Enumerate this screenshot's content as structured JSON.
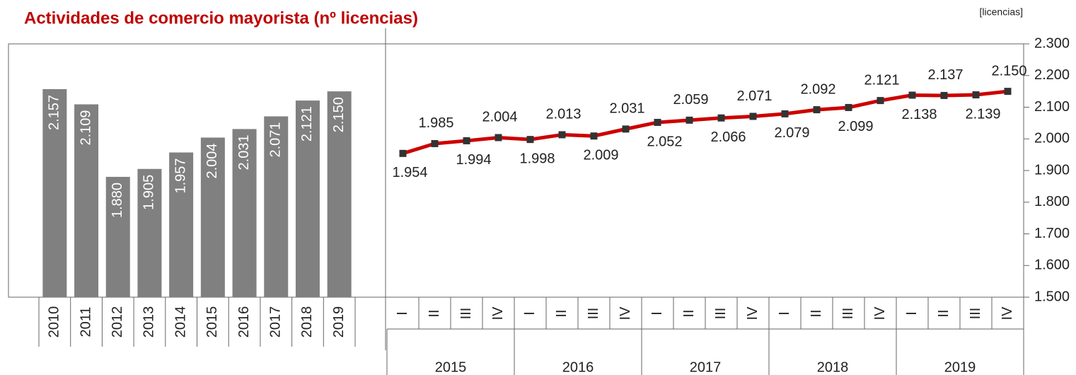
{
  "chart_data": [
    {
      "type": "bar",
      "title": "Actividades de comercio mayorista (nº licencias)",
      "categories": [
        "2010",
        "2011",
        "2012",
        "2013",
        "2014",
        "2015",
        "2016",
        "2017",
        "2018",
        "2019"
      ],
      "values": [
        2157,
        2109,
        1880,
        1905,
        1957,
        2004,
        2031,
        2071,
        2121,
        2150
      ],
      "value_labels": [
        "2.157",
        "2.109",
        "1.880",
        "1.905",
        "1.957",
        "2.004",
        "2.031",
        "2.071",
        "2.121",
        "2.150"
      ],
      "color": "#808080",
      "ylim": [
        1500,
        2300
      ]
    },
    {
      "type": "line",
      "unit": "[licencias]",
      "categories": [
        "I",
        "II",
        "III",
        "IV",
        "I",
        "II",
        "III",
        "IV",
        "I",
        "II",
        "III",
        "IV",
        "I",
        "II",
        "III",
        "IV",
        "I",
        "II",
        "III",
        "IV"
      ],
      "groups": [
        "2015",
        "2016",
        "2017",
        "2018",
        "2019"
      ],
      "values": [
        1954,
        1985,
        1994,
        2004,
        1998,
        2013,
        2009,
        2031,
        2052,
        2059,
        2066,
        2071,
        2079,
        2092,
        2099,
        2121,
        2138,
        2137,
        2139,
        2150
      ],
      "value_labels": [
        "1.954",
        "1.985",
        "1.994",
        "2.004",
        "1.998",
        "2.013",
        "2.009",
        "2.031",
        "2.052",
        "2.059",
        "2.066",
        "2.071",
        "2.079",
        "2.092",
        "2.099",
        "2.121",
        "2.138",
        "2.137",
        "2.139",
        "2.150"
      ],
      "color": "#cc0000",
      "marker_color": "#333333",
      "ylim": [
        1500,
        2300
      ],
      "yticks": [
        {
          "value": 1500,
          "label": "1.500"
        },
        {
          "value": 1600,
          "label": "1.600"
        },
        {
          "value": 1700,
          "label": "1.700"
        },
        {
          "value": 1800,
          "label": "1.800"
        },
        {
          "value": 1900,
          "label": "1.900"
        },
        {
          "value": 2000,
          "label": "2.000"
        },
        {
          "value": 2100,
          "label": "2.100"
        },
        {
          "value": 2200,
          "label": "2.200"
        },
        {
          "value": 2300,
          "label": "2.300"
        }
      ]
    }
  ]
}
